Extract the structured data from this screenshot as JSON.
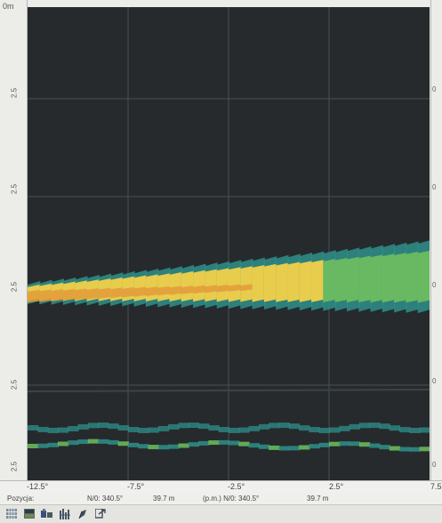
{
  "left_axis": {
    "corner_label": "0m",
    "labels": [
      "2.5",
      "2.5",
      "2.5",
      "2.5",
      "2.5"
    ]
  },
  "right_axis": {
    "labels": [
      "0",
      "0",
      "0",
      "0",
      "0"
    ]
  },
  "x_axis": {
    "labels": [
      "-12.5°",
      "-7.5°",
      "-2.5°",
      "2.5°",
      "7.5"
    ]
  },
  "status_bar": {
    "position_label": "Pozycja:",
    "bearing_1": "N/0: 340.5°",
    "range_1": "39.7 m",
    "bearing_2": "(p.m.) N/0: 340.5°",
    "range_2": "39.7 m"
  },
  "toolbar": {
    "icons": [
      "grid-view-icon",
      "display-mode-icon",
      "palette-icon",
      "sensitivity-bars-icon",
      "color-brush-icon",
      "export-icon"
    ]
  },
  "colors": {
    "background": "#262a2c",
    "grid": "#4b5053",
    "echo_strong": "#f2d04a",
    "echo_hot": "#e39a3a",
    "echo_mid": "#6fbf5e",
    "echo_weak": "#2f8f8a"
  }
}
